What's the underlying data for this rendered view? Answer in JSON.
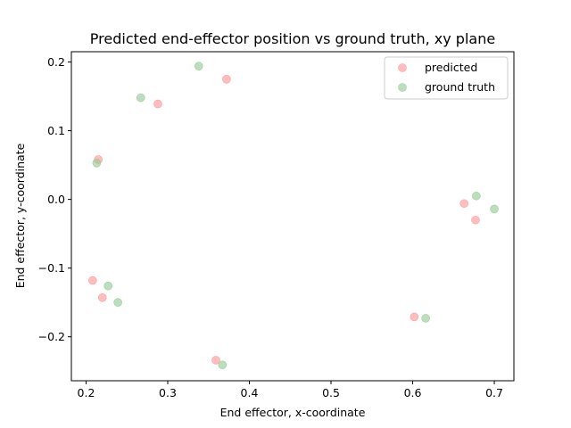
{
  "chart_data": {
    "type": "scatter",
    "title": "Predicted end-effector position vs ground truth, xy plane",
    "xlabel": "End effector, x-coordinate",
    "ylabel": "End effector, y-coordinate",
    "xlim": [
      0.182,
      0.724
    ],
    "ylim": [
      -0.264,
      0.215
    ],
    "xticks": [
      0.2,
      0.3,
      0.4,
      0.5,
      0.6,
      0.7
    ],
    "xtick_labels": [
      "0.2",
      "0.3",
      "0.4",
      "0.5",
      "0.6",
      "0.7"
    ],
    "yticks": [
      -0.2,
      -0.1,
      0.0,
      0.1,
      0.2
    ],
    "ytick_labels": [
      "−0.2",
      "−0.1",
      "0.0",
      "0.1",
      "0.2"
    ],
    "grid": false,
    "legend_position": "top-right",
    "series": [
      {
        "name": "predicted",
        "color": "#ff9999",
        "points": [
          {
            "x": 0.372,
            "y": 0.175
          },
          {
            "x": 0.288,
            "y": 0.139
          },
          {
            "x": 0.215,
            "y": 0.058
          },
          {
            "x": 0.663,
            "y": -0.006
          },
          {
            "x": 0.677,
            "y": -0.03
          },
          {
            "x": 0.208,
            "y": -0.118
          },
          {
            "x": 0.22,
            "y": -0.143
          },
          {
            "x": 0.602,
            "y": -0.171
          },
          {
            "x": 0.359,
            "y": -0.234
          }
        ]
      },
      {
        "name": "ground truth",
        "color": "#99cc99",
        "points": [
          {
            "x": 0.338,
            "y": 0.194
          },
          {
            "x": 0.267,
            "y": 0.148
          },
          {
            "x": 0.213,
            "y": 0.053
          },
          {
            "x": 0.678,
            "y": 0.005
          },
          {
            "x": 0.7,
            "y": -0.014
          },
          {
            "x": 0.227,
            "y": -0.126
          },
          {
            "x": 0.239,
            "y": -0.15
          },
          {
            "x": 0.616,
            "y": -0.173
          },
          {
            "x": 0.367,
            "y": -0.241
          }
        ]
      }
    ]
  }
}
